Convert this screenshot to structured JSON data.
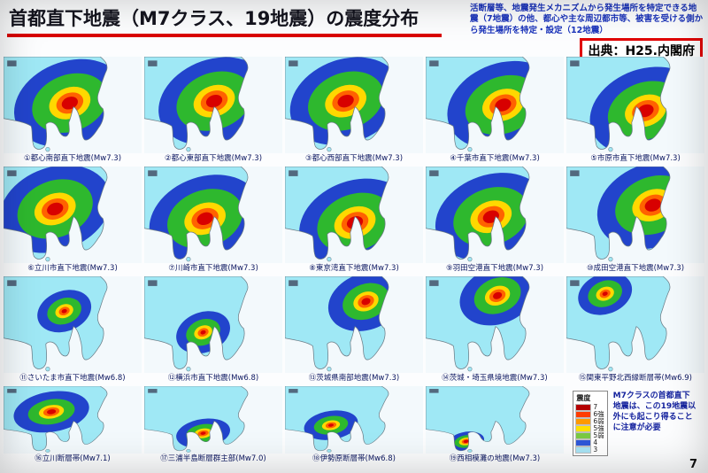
{
  "slide": {
    "title": "首都直下地震（M7クラス、19地震）の震度分布",
    "note": "活断層等、地震発生メカニズムから発生場所を特定できる地震（7地震）の他、都心や主な周辺都市等、被害を受ける側から発生場所を特定・設定（12地震）",
    "source": "出典：H25.内閣府",
    "page_number": "7"
  },
  "colors": {
    "accent_red": "#d90000",
    "note_blue": "#1a33bb",
    "caption_navy": "#0a1660",
    "sea": "#f3f9fc",
    "land_base": "#9fe8f5",
    "intensity_scale": [
      "#d80000",
      "#ff6200",
      "#ffd800",
      "#2eb82e",
      "#2244cc"
    ]
  },
  "maps": [
    {
      "label": "①都心南部直下地震(Mw7.3)",
      "ex": 72,
      "ey": 48,
      "size": "L"
    },
    {
      "label": "②都心東部直下地震(Mw7.3)",
      "ex": 76,
      "ey": 46,
      "size": "L"
    },
    {
      "label": "③都心西部直下地震(Mw7.3)",
      "ex": 66,
      "ey": 46,
      "size": "L"
    },
    {
      "label": "④千葉市直下地震(Mw7.3)",
      "ex": 84,
      "ey": 50,
      "size": "L"
    },
    {
      "label": "⑤市原市直下地震(Mw7.3)",
      "ex": 86,
      "ey": 56,
      "size": "L"
    },
    {
      "label": "⑥立川市直下地震(Mw7.3)",
      "ex": 56,
      "ey": 44,
      "size": "L"
    },
    {
      "label": "⑦川崎市直下地震(Mw7.3)",
      "ex": 66,
      "ey": 54,
      "size": "L"
    },
    {
      "label": "⑧東京湾直下地震(Mw7.3)",
      "ex": 76,
      "ey": 58,
      "size": "L"
    },
    {
      "label": "⑨羽田空港直下地震(Mw7.3)",
      "ex": 71,
      "ey": 52,
      "size": "L"
    },
    {
      "label": "⑩成田空港直下地震(Mw7.3)",
      "ex": 94,
      "ey": 40,
      "size": "L"
    },
    {
      "label": "⑪さいたま市直下地震(Mw6.8)",
      "ex": 66,
      "ey": 36,
      "size": "S"
    },
    {
      "label": "⑫横浜市直下地震(Mw6.8)",
      "ex": 64,
      "ey": 58,
      "size": "S"
    },
    {
      "label": "⑬茨城県南部地震(Mw7.3)",
      "ex": 88,
      "ey": 26,
      "size": "M"
    },
    {
      "label": "⑭茨城・埼玉県境地震(Mw7.3)",
      "ex": 78,
      "ey": 20,
      "size": "M"
    },
    {
      "label": "⑮関東平野北西縁断層帯(Mw6.9)",
      "ex": 42,
      "ey": 18,
      "size": "S"
    },
    {
      "label": "⑯立川断層帯(Mw7.1)",
      "ex": 52,
      "ey": 38,
      "size": "M"
    },
    {
      "label": "⑰三浦半島断層群主部(Mw7.0)",
      "ex": 64,
      "ey": 70,
      "size": "S"
    },
    {
      "label": "⑱伊勢原断層帯(Mw6.8)",
      "ex": 50,
      "ey": 58,
      "size": "S"
    },
    {
      "label": "⑲西相模灘の地震(Mw7.3)",
      "ex": 44,
      "ey": 82,
      "size": "XS"
    }
  ],
  "legend": {
    "title": "震度",
    "items": [
      {
        "label": "7",
        "color": "#b40000"
      },
      {
        "label": "6強",
        "color": "#ff3c00"
      },
      {
        "label": "6弱",
        "color": "#ff9900"
      },
      {
        "label": "5強",
        "color": "#ffe000"
      },
      {
        "label": "5弱",
        "color": "#7ac943"
      },
      {
        "label": "4",
        "color": "#2e58d8"
      },
      {
        "label": "3",
        "color": "#a8e4f5"
      }
    ],
    "note": "M7クラスの首都直下地震は、この19地震以外にも起こり得ることに注意が必要"
  }
}
